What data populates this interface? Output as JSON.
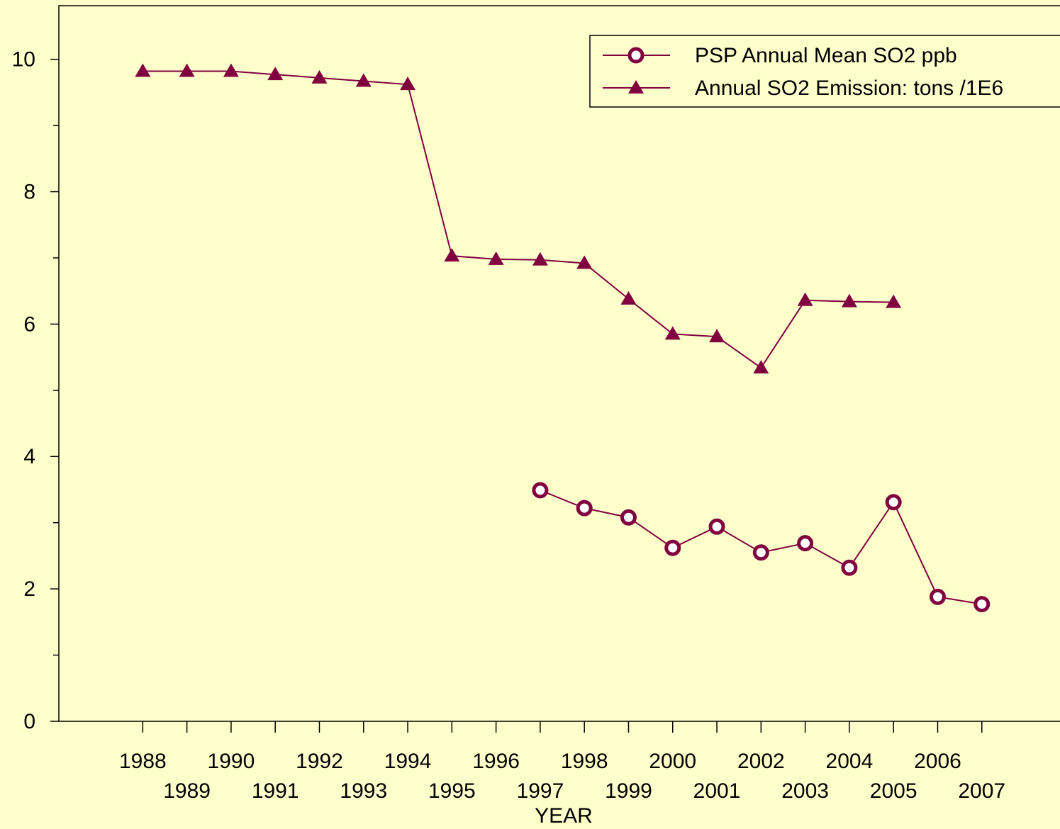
{
  "chart_data": {
    "type": "line",
    "xlabel": "YEAR",
    "x": [
      1988,
      1989,
      1990,
      1991,
      1992,
      1993,
      1994,
      1995,
      1996,
      1997,
      1998,
      1999,
      2000,
      2001,
      2002,
      2003,
      2004,
      2005,
      2006,
      2007
    ],
    "series": [
      {
        "name": "PSP Annual Mean SO2 ppb",
        "color": "#800040",
        "marker": "circle",
        "values": [
          null,
          null,
          null,
          null,
          null,
          null,
          null,
          null,
          null,
          3.49,
          3.22,
          3.08,
          2.62,
          2.94,
          2.55,
          2.69,
          2.32,
          3.31,
          1.88,
          1.77
        ]
      },
      {
        "name": "Annual SO2 Emission: tons /1E6",
        "color": "#800040",
        "marker": "triangle",
        "values": [
          9.82,
          9.82,
          9.82,
          9.77,
          9.72,
          9.67,
          9.62,
          7.03,
          6.98,
          6.97,
          6.92,
          6.38,
          5.85,
          5.81,
          5.34,
          6.36,
          6.34,
          6.33,
          null,
          null
        ]
      }
    ],
    "xlim": [
      1986.1,
      2008.77
    ],
    "xticks": [
      1988,
      1989,
      1990,
      1991,
      1992,
      1993,
      1994,
      1995,
      1996,
      1997,
      1998,
      1999,
      2000,
      2001,
      2002,
      2003,
      2004,
      2005,
      2006,
      2007
    ],
    "ylim": [
      0,
      10.81
    ],
    "yticks": [
      0,
      2,
      4,
      6,
      8,
      10
    ],
    "yminorticks": [
      1,
      3,
      5,
      7,
      9
    ],
    "background": "#ffffcc",
    "legend": "upper right"
  }
}
